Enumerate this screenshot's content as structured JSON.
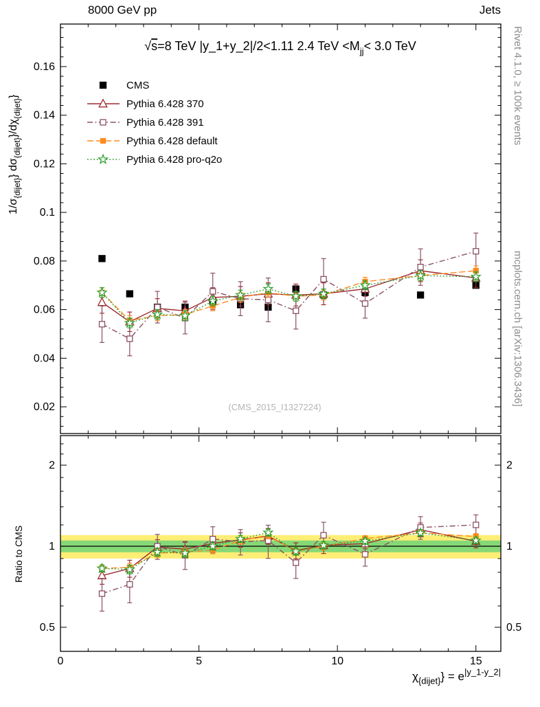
{
  "header": {
    "left": "8000 GeV pp",
    "right": "Jets"
  },
  "side_notes": {
    "top_right": "Rivet 4.1.0, ≥ 100k events",
    "bottom_right": "mcplots.cern.ch [arXiv:1306.3436]"
  },
  "watermark": "(CMS_2015_I1327224)",
  "chart_data": {
    "type": "line",
    "title_text": "√s=8 TeV |y_1+y_2|/2<1.11 2.4 TeV <M_jj< 3.0 TeV",
    "title_parts": [
      {
        "t": "√"
      },
      {
        "t": "s",
        "overline": true
      },
      {
        "t": "=8 TeV  |y_1+y_2|/2<1.11  2.4 TeV <M"
      },
      {
        "t": "jj",
        "sub": true
      },
      {
        "t": "< 3.0 TeV"
      }
    ],
    "x_label_text": "χ_{dijet}} = e^{|y_1-y_2|}",
    "x_label_parts": [
      {
        "t": "χ"
      },
      {
        "t": "{dijet}",
        "sub": true
      },
      {
        "t": "} = e"
      },
      {
        "t": "|y_1-y_2|",
        "sup": true
      }
    ],
    "y_label_text": "1/σ_{dijet}} dσ_{dijet}}/dχ_{dijet}}",
    "y_label_parts": [
      {
        "t": "1/σ"
      },
      {
        "t": "{dijet}",
        "sub": true
      },
      {
        "t": "} dσ"
      },
      {
        "t": "{dijet}",
        "sub": true
      },
      {
        "t": "}/dχ"
      },
      {
        "t": "{dijet}",
        "sub": true
      },
      {
        "t": "}"
      }
    ],
    "ratio_label": "Ratio to CMS",
    "legend_position": "top-left",
    "grid": false,
    "x": [
      1.5,
      2.5,
      3.5,
      4.5,
      5.5,
      6.5,
      7.5,
      8.5,
      9.5,
      11,
      13,
      15
    ],
    "x_range": [
      0,
      15.9
    ],
    "x_ticks": [
      0,
      5,
      10,
      15
    ],
    "y_range_main": [
      0.009,
      0.1775
    ],
    "y_ticks_main": [
      0.02,
      0.04,
      0.06,
      0.08,
      0.1,
      0.12,
      0.14,
      0.16
    ],
    "ratio_range": [
      0.407,
      2.575
    ],
    "ratio_ticks": [
      0.5,
      1,
      2
    ],
    "ratio_minor_ticks": [
      0.6,
      0.7,
      0.8,
      0.9,
      1.2,
      1.4,
      1.6,
      1.8,
      2.2,
      2.4
    ],
    "bands": {
      "yellow": [
        0.9,
        1.1
      ],
      "green": [
        0.95,
        1.05
      ],
      "yellow_color": "#feee75",
      "green_color": "#86d876"
    },
    "series": [
      {
        "name": "CMS",
        "color": "#000000",
        "marker": "square",
        "filled": true,
        "size": 9,
        "line": "none",
        "values": [
          0.081,
          0.0665,
          0.061,
          0.061,
          0.0635,
          0.062,
          0.061,
          0.0685,
          0.066,
          0.067,
          0.066,
          0.07
        ],
        "errors": [
          0.0012,
          0.0011,
          0.001,
          0.001,
          0.001,
          0.001,
          0.001,
          0.0011,
          0.0011,
          0.0009,
          0.0009,
          0.001
        ]
      },
      {
        "name": "Pythia 6.428 370",
        "color": "#9e2b2f",
        "marker": "triangle",
        "filled": false,
        "size": 11,
        "line": "solid",
        "values": [
          0.063,
          0.055,
          0.0605,
          0.0595,
          0.065,
          0.0655,
          0.0665,
          0.066,
          0.0665,
          0.0685,
          0.076,
          0.073
        ],
        "errors": [
          0.0045,
          0.004,
          0.004,
          0.004,
          0.004,
          0.004,
          0.0045,
          0.0045,
          0.0045,
          0.003,
          0.0045,
          0.004
        ]
      },
      {
        "name": "Pythia 6.428 391",
        "color": "#8a5063",
        "marker": "square",
        "filled": false,
        "size": 8,
        "line": "dashdot",
        "values": [
          0.054,
          0.048,
          0.061,
          0.0565,
          0.0675,
          0.0645,
          0.064,
          0.0595,
          0.0725,
          0.0625,
          0.0775,
          0.084
        ],
        "errors": [
          0.0075,
          0.007,
          0.0065,
          0.0065,
          0.0075,
          0.007,
          0.009,
          0.0075,
          0.0085,
          0.006,
          0.0075,
          0.0075
        ]
      },
      {
        "name": "Pythia 6.428 default",
        "color": "#ff8c21",
        "marker": "square",
        "filled": true,
        "size": 7,
        "line": "dash",
        "values": [
          0.067,
          0.0555,
          0.0575,
          0.058,
          0.0615,
          0.065,
          0.067,
          0.0655,
          0.066,
          0.0715,
          0.074,
          0.076
        ],
        "errors": [
          0.002,
          0.002,
          0.002,
          0.002,
          0.002,
          0.002,
          0.002,
          0.002,
          0.002,
          0.0018,
          0.002,
          0.002
        ]
      },
      {
        "name": "Pythia 6.428 pro-q2o",
        "color": "#2a9d2a",
        "marker": "star",
        "filled": false,
        "size": 13,
        "line": "dot",
        "values": [
          0.067,
          0.0545,
          0.058,
          0.0575,
          0.0635,
          0.066,
          0.0685,
          0.0655,
          0.0665,
          0.07,
          0.074,
          0.0735
        ],
        "errors": [
          0.002,
          0.002,
          0.002,
          0.002,
          0.002,
          0.002,
          0.002,
          0.002,
          0.002,
          0.0018,
          0.002,
          0.002
        ]
      }
    ]
  }
}
